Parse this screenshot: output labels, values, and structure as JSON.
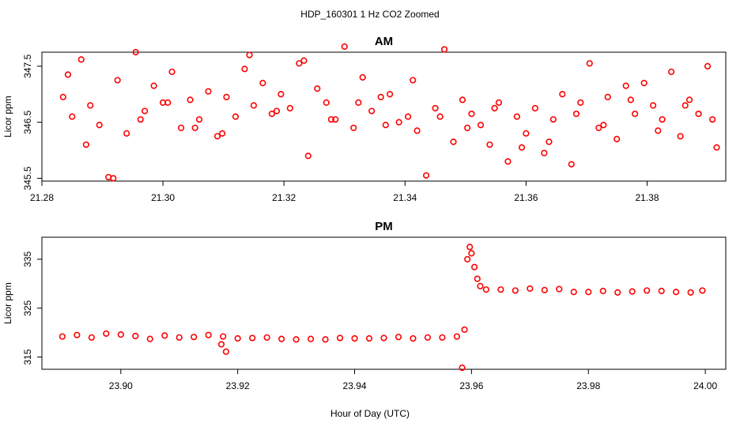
{
  "figure": {
    "title": "HDP_160301  1 Hz CO2 Zoomed",
    "xlabel": "Hour of Day (UTC)"
  },
  "chart_data": [
    {
      "type": "scatter",
      "title": "AM",
      "xlabel": "",
      "ylabel": "Licor ppm",
      "xlim": [
        21.28,
        21.393
      ],
      "ylim": [
        345.45,
        347.75
      ],
      "xticks": [
        21.28,
        21.3,
        21.32,
        21.34,
        21.36,
        21.38
      ],
      "xtick_labels": [
        "21.28",
        "21.30",
        "21.32",
        "21.34",
        "21.36",
        "21.38"
      ],
      "yticks": [
        345.5,
        346.5,
        347.5
      ],
      "ytick_labels": [
        "345.5",
        "346.5",
        "347.5"
      ],
      "marker_color": "#ff0000",
      "series": [
        {
          "x": [
            21.2835,
            21.285,
            21.2865,
            21.288,
            21.2895,
            21.291,
            21.2925,
            21.294,
            21.2955,
            21.297,
            21.2985,
            21.3,
            21.3015,
            21.303,
            21.3045,
            21.306,
            21.3075,
            21.309,
            21.3105,
            21.312,
            21.3135,
            21.315,
            21.3165,
            21.318,
            21.3195,
            21.321,
            21.3225,
            21.324,
            21.3255,
            21.327,
            21.3285,
            21.33,
            21.3315,
            21.333,
            21.3345,
            21.336,
            21.3375,
            21.339,
            21.3405,
            21.342,
            21.3435,
            21.345,
            21.3465,
            21.348,
            21.3495,
            21.351,
            21.3525,
            21.354,
            21.3555,
            21.357,
            21.3585,
            21.36,
            21.3615,
            21.363,
            21.3645,
            21.366,
            21.3675,
            21.369,
            21.3705,
            21.372,
            21.3735,
            21.375,
            21.3765,
            21.378,
            21.3795,
            21.381,
            21.3825,
            21.384,
            21.3855,
            21.387,
            21.3885,
            21.39,
            21.3915,
            21.2843,
            21.2873,
            21.2918,
            21.2963,
            21.3008,
            21.3053,
            21.3098,
            21.3143,
            21.3188,
            21.3233,
            21.3278,
            21.3323,
            21.3368,
            21.3413,
            21.3458,
            21.3503,
            21.3548,
            21.3593,
            21.3638,
            21.3683,
            21.3728,
            21.3773,
            21.3818,
            21.3863,
            21.3908
          ],
          "y": [
            346.95,
            346.6,
            347.62,
            346.8,
            346.45,
            345.52,
            347.25,
            346.3,
            347.75,
            346.7,
            347.15,
            346.85,
            347.4,
            346.4,
            346.9,
            346.55,
            347.05,
            346.25,
            346.95,
            346.6,
            347.45,
            346.8,
            347.2,
            346.65,
            347.0,
            346.75,
            347.55,
            345.9,
            347.1,
            346.85,
            346.55,
            347.85,
            346.4,
            347.3,
            346.7,
            346.95,
            347.0,
            346.5,
            346.6,
            346.35,
            345.55,
            346.75,
            347.8,
            346.15,
            346.9,
            346.65,
            346.45,
            346.1,
            346.85,
            345.8,
            346.6,
            346.3,
            346.75,
            345.95,
            346.55,
            347.0,
            345.75,
            346.85,
            347.55,
            346.4,
            346.95,
            346.2,
            347.15,
            346.65,
            347.2,
            346.8,
            346.55,
            347.4,
            346.25,
            346.9,
            346.65,
            347.5,
            346.05,
            347.35,
            346.1,
            345.5,
            346.55,
            346.85,
            346.4,
            346.3,
            347.7,
            346.7,
            347.6,
            346.55,
            346.85,
            346.45,
            347.25,
            346.6,
            346.4,
            346.75,
            346.05,
            346.15,
            346.65,
            346.45,
            346.9,
            346.35,
            346.8,
            346.55
          ]
        }
      ]
    },
    {
      "type": "scatter",
      "title": "PM",
      "xlabel": "",
      "ylabel": "Licor ppm",
      "xlim": [
        23.8865,
        24.0035
      ],
      "ylim": [
        312.5,
        339.5
      ],
      "xticks": [
        23.9,
        23.92,
        23.94,
        23.96,
        23.98,
        24.0
      ],
      "xtick_labels": [
        "23.90",
        "23.92",
        "23.94",
        "23.96",
        "23.98",
        "24.00"
      ],
      "yticks": [
        315,
        325,
        335
      ],
      "ytick_labels": [
        "315",
        "325",
        "335"
      ],
      "marker_color": "#ff0000",
      "series": [
        {
          "x": [
            23.89,
            23.8925,
            23.895,
            23.8975,
            23.9,
            23.9025,
            23.905,
            23.9075,
            23.91,
            23.9125,
            23.915,
            23.9175,
            23.92,
            23.9225,
            23.925,
            23.9275,
            23.93,
            23.9325,
            23.935,
            23.9375,
            23.94,
            23.9425,
            23.945,
            23.9475,
            23.95,
            23.9525,
            23.955,
            23.9575,
            23.9584,
            23.9588,
            23.9593,
            23.9597,
            23.96,
            23.9605,
            23.961,
            23.9615,
            23.9625,
            23.965,
            23.9675,
            23.97,
            23.9725,
            23.975,
            23.9775,
            23.98,
            23.9825,
            23.985,
            23.9875,
            23.99,
            23.9925,
            23.995,
            23.9975,
            23.9995,
            23.918,
            23.9172
          ],
          "y": [
            319.2,
            319.5,
            319.0,
            319.8,
            319.6,
            319.3,
            318.7,
            319.4,
            319.0,
            319.1,
            319.5,
            319.2,
            318.8,
            318.9,
            319.0,
            318.7,
            318.6,
            318.7,
            318.6,
            318.9,
            318.8,
            318.8,
            318.9,
            319.1,
            318.8,
            319.0,
            319.0,
            319.2,
            312.8,
            320.6,
            335.0,
            337.5,
            336.2,
            333.4,
            331.0,
            329.5,
            328.8,
            328.8,
            328.6,
            329.0,
            328.7,
            328.9,
            328.3,
            328.3,
            328.5,
            328.2,
            328.4,
            328.6,
            328.5,
            328.3,
            328.2,
            328.6,
            316.1,
            317.6
          ]
        }
      ]
    }
  ]
}
